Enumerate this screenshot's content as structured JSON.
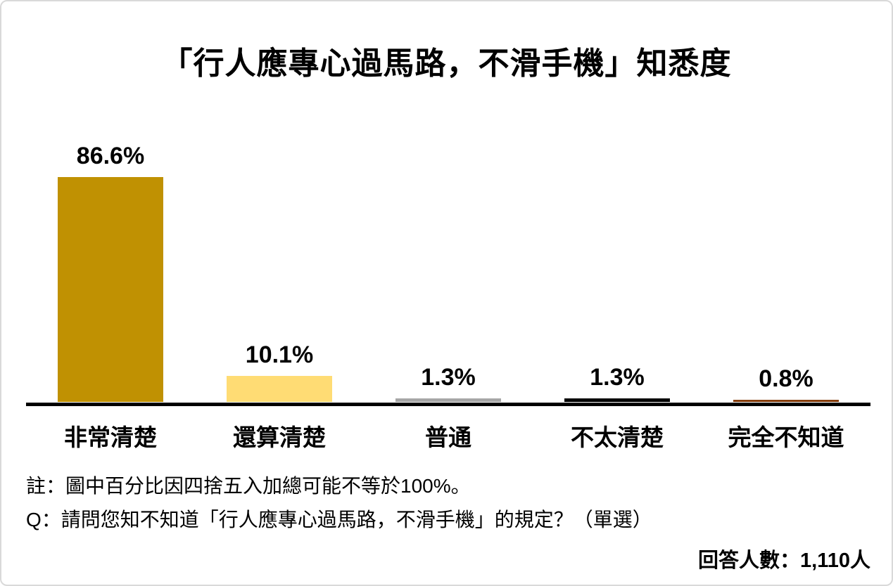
{
  "chart_data": {
    "type": "bar",
    "title": "「行人應專心過馬路，不滑手機」知悉度",
    "categories": [
      "非常清楚",
      "還算清楚",
      "普通",
      "不太清楚",
      "完全不知道"
    ],
    "values": [
      86.6,
      10.1,
      1.3,
      1.3,
      0.8
    ],
    "value_labels": [
      "86.6%",
      "10.1%",
      "1.3%",
      "1.3%",
      "0.8%"
    ],
    "bar_colors": [
      "#C09102",
      "#FFDC74",
      "#A6A6A6",
      "#000000",
      "#843C0B"
    ],
    "xlabel": "",
    "ylabel": "",
    "ylim": [
      0,
      100
    ],
    "grid": false,
    "legend": "none",
    "axis_color": "#000000"
  },
  "footnotes": {
    "note": "註：圖中百分比因四捨五入加總可能不等於100%。",
    "question": "Q：請問您知不知道「行人應專心過馬路，不滑手機」的規定？（單選）",
    "respondents": "回答人數：1,110人"
  }
}
